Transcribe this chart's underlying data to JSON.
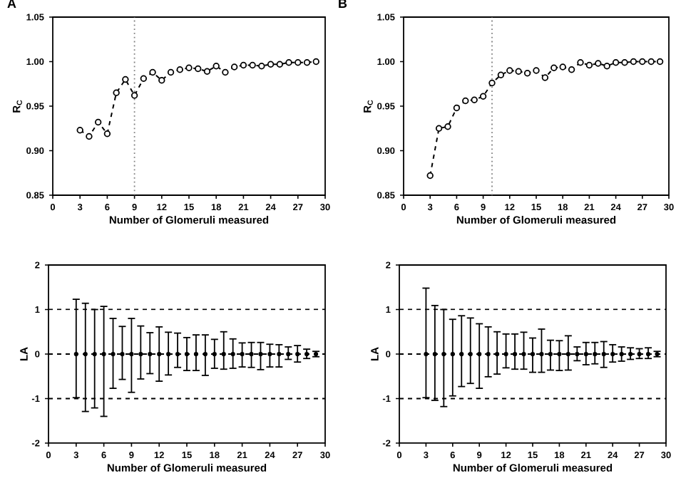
{
  "chart_data": [
    {
      "type": "line",
      "title": "A",
      "xlabel": "Number of Glomeruli measured",
      "ylabel": "R$_{C}$",
      "marker": "circle",
      "line_style": "dashed",
      "x": [
        3,
        4,
        5,
        6,
        7,
        8,
        9,
        10,
        11,
        12,
        13,
        14,
        15,
        16,
        17,
        18,
        19,
        20,
        21,
        22,
        23,
        24,
        25,
        26,
        27,
        28,
        29
      ],
      "series": [
        {
          "color": "#000000",
          "values": [
            0.923,
            0.916,
            0.932,
            0.919,
            0.965,
            0.98,
            0.962,
            0.981,
            0.988,
            0.979,
            0.988,
            0.991,
            0.993,
            0.992,
            0.989,
            0.995,
            0.988,
            0.994,
            0.996,
            0.996,
            0.995,
            0.997,
            0.997,
            0.999,
            0.999,
            0.999,
            1.0
          ]
        }
      ],
      "xlim": [
        0,
        30
      ],
      "xticks": [
        0,
        3,
        6,
        9,
        12,
        15,
        18,
        21,
        24,
        27,
        30
      ],
      "ylim": [
        0.85,
        1.05
      ],
      "yticks": [
        {
          "value": 0.85,
          "label": "0.85"
        },
        {
          "value": 0.9,
          "label": "0.90"
        },
        {
          "value": 0.95,
          "label": "0.95"
        },
        {
          "value": 1.0,
          "label": "1.00"
        },
        {
          "value": 1.05,
          "label": "1.05"
        }
      ],
      "ref_lines": [
        {
          "axis": "x",
          "value": 9,
          "color": "#808080",
          "line_style": "dotted"
        }
      ]
    },
    {
      "type": "line",
      "title": "B",
      "xlabel": "Number of Glomeruli measured",
      "ylabel": "R$_{C}$",
      "marker": "circle",
      "line_style": "dashed",
      "x": [
        3,
        4,
        5,
        6,
        7,
        8,
        9,
        10,
        11,
        12,
        13,
        14,
        15,
        16,
        17,
        18,
        19,
        20,
        21,
        22,
        23,
        24,
        25,
        26,
        27,
        28,
        29
      ],
      "series": [
        {
          "color": "#000000",
          "values": [
            0.872,
            0.925,
            0.927,
            0.948,
            0.956,
            0.957,
            0.961,
            0.976,
            0.985,
            0.99,
            0.989,
            0.987,
            0.99,
            0.982,
            0.993,
            0.994,
            0.991,
            0.999,
            0.996,
            0.998,
            0.995,
            0.999,
            0.999,
            1.0,
            1.0,
            1.0,
            1.0
          ]
        }
      ],
      "xlim": [
        0,
        30
      ],
      "xticks": [
        0,
        3,
        6,
        9,
        12,
        15,
        18,
        21,
        24,
        27,
        30
      ],
      "ylim": [
        0.85,
        1.05
      ],
      "yticks": [
        {
          "value": 0.85,
          "label": "0.85"
        },
        {
          "value": 0.9,
          "label": "0.90"
        },
        {
          "value": 0.95,
          "label": "0.95"
        },
        {
          "value": 1.0,
          "label": "1.00"
        },
        {
          "value": 1.05,
          "label": "1.05"
        }
      ],
      "ref_lines": [
        {
          "axis": "x",
          "value": 10,
          "color": "#808080",
          "line_style": "dotted"
        }
      ]
    },
    {
      "type": "scatter",
      "xlabel": "Number of Glomeruli measured",
      "ylabel": "LA",
      "marker": "circle",
      "x": [
        3,
        4,
        5,
        6,
        7,
        8,
        9,
        10,
        11,
        12,
        13,
        14,
        15,
        16,
        17,
        18,
        19,
        20,
        21,
        22,
        23,
        24,
        25,
        26,
        27,
        28,
        29
      ],
      "series": [
        {
          "color": "#000000",
          "values": [
            0,
            0,
            0,
            0,
            0,
            0,
            0,
            0,
            0,
            0,
            0,
            0,
            0,
            0,
            0,
            0,
            0,
            0,
            0,
            0,
            0,
            0,
            0,
            0,
            0,
            0,
            0
          ],
          "errors": [
            [
              -0.98,
              1.23
            ],
            [
              -1.29,
              1.14
            ],
            [
              -1.21,
              1.0
            ],
            [
              -1.4,
              1.07
            ],
            [
              -0.77,
              0.8
            ],
            [
              -0.57,
              0.62
            ],
            [
              -0.86,
              0.8
            ],
            [
              -0.56,
              0.63
            ],
            [
              -0.44,
              0.48
            ],
            [
              -0.61,
              0.61
            ],
            [
              -0.47,
              0.49
            ],
            [
              -0.3,
              0.47
            ],
            [
              -0.37,
              0.37
            ],
            [
              -0.37,
              0.43
            ],
            [
              -0.48,
              0.43
            ],
            [
              -0.32,
              0.33
            ],
            [
              -0.34,
              0.5
            ],
            [
              -0.32,
              0.34
            ],
            [
              -0.29,
              0.25
            ],
            [
              -0.3,
              0.26
            ],
            [
              -0.35,
              0.26
            ],
            [
              -0.29,
              0.22
            ],
            [
              -0.29,
              0.21
            ],
            [
              -0.12,
              0.16
            ],
            [
              -0.18,
              0.19
            ],
            [
              -0.1,
              0.11
            ],
            [
              -0.06,
              0.06
            ]
          ]
        }
      ],
      "xlim": [
        0,
        30
      ],
      "xticks": [
        0,
        3,
        6,
        9,
        12,
        15,
        18,
        21,
        24,
        27,
        30
      ],
      "ylim": [
        -2,
        2
      ],
      "yticks": [
        -2,
        -1,
        0,
        1,
        2
      ],
      "ref_lines": [
        {
          "axis": "y",
          "value": 1,
          "color": "#000000",
          "line_style": "dashed"
        },
        {
          "axis": "y",
          "value": 0,
          "color": "#000000",
          "line_style": "dashed"
        },
        {
          "axis": "y",
          "value": -1,
          "color": "#000000",
          "line_style": "dashed"
        }
      ]
    },
    {
      "type": "scatter",
      "xlabel": "Number of Glomeruli measured",
      "ylabel": "LA",
      "marker": "circle",
      "x": [
        3,
        4,
        5,
        6,
        7,
        8,
        9,
        10,
        11,
        12,
        13,
        14,
        15,
        16,
        17,
        18,
        19,
        20,
        21,
        22,
        23,
        24,
        25,
        26,
        27,
        28,
        29
      ],
      "series": [
        {
          "color": "#000000",
          "values": [
            0,
            0,
            0,
            0,
            0,
            0,
            0,
            0,
            0,
            0,
            0,
            0,
            0,
            0,
            0,
            0,
            0,
            0,
            0,
            0,
            0,
            0,
            0,
            0,
            0,
            0,
            0
          ],
          "errors": [
            [
              -0.98,
              1.48
            ],
            [
              -1.04,
              1.09
            ],
            [
              -1.18,
              1.0
            ],
            [
              -0.94,
              0.78
            ],
            [
              -0.73,
              0.86
            ],
            [
              -0.66,
              0.81
            ],
            [
              -0.77,
              0.68
            ],
            [
              -0.51,
              0.61
            ],
            [
              -0.45,
              0.5
            ],
            [
              -0.31,
              0.45
            ],
            [
              -0.34,
              0.45
            ],
            [
              -0.34,
              0.49
            ],
            [
              -0.41,
              0.36
            ],
            [
              -0.41,
              0.56
            ],
            [
              -0.36,
              0.31
            ],
            [
              -0.37,
              0.3
            ],
            [
              -0.36,
              0.41
            ],
            [
              -0.15,
              0.16
            ],
            [
              -0.24,
              0.26
            ],
            [
              -0.22,
              0.26
            ],
            [
              -0.3,
              0.28
            ],
            [
              -0.18,
              0.21
            ],
            [
              -0.16,
              0.16
            ],
            [
              -0.12,
              0.14
            ],
            [
              -0.1,
              0.12
            ],
            [
              -0.1,
              0.14
            ],
            [
              -0.06,
              0.06
            ]
          ]
        }
      ],
      "xlim": [
        0,
        30
      ],
      "xticks": [
        0,
        3,
        6,
        9,
        12,
        15,
        18,
        21,
        24,
        27,
        30
      ],
      "ylim": [
        -2,
        2
      ],
      "yticks": [
        -2,
        -1,
        0,
        1,
        2
      ],
      "ref_lines": [
        {
          "axis": "y",
          "value": 1,
          "color": "#000000",
          "line_style": "dashed"
        },
        {
          "axis": "y",
          "value": 0,
          "color": "#000000",
          "line_style": "dashed"
        },
        {
          "axis": "y",
          "value": -1,
          "color": "#000000",
          "line_style": "dashed"
        }
      ]
    }
  ]
}
